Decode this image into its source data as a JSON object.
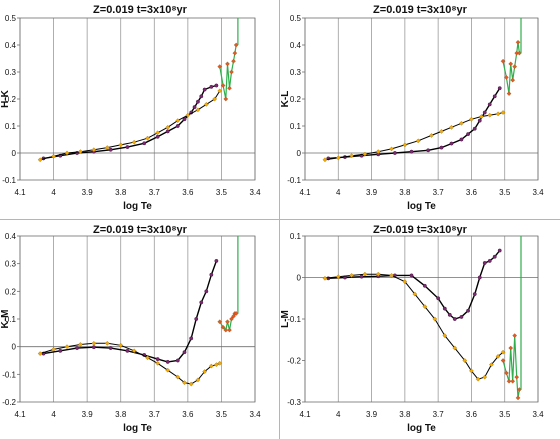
{
  "colors": {
    "dwarf_line": "#000000",
    "dwarf_points": "#7b2a6f",
    "giant_line": "#000000",
    "giant_points": "#f2a900",
    "agb_line": "#2fae4b",
    "agb_points": "#e05a28",
    "gridline": "#9a9a9a"
  },
  "chart_data": [
    {
      "type": "scatter",
      "title": "Z=0.019   t=3x10⁸yr",
      "xlabel": "log Te",
      "ylabel": "H-K",
      "xlim": [
        4.1,
        3.4
      ],
      "x_reversed": true,
      "xticks": [
        "4.1",
        "4",
        "3.9",
        "3.8",
        "3.7",
        "3.6",
        "3.5",
        "3.4"
      ],
      "ylim": [
        -0.1,
        0.5
      ],
      "yticks": [
        "-0.1",
        "0",
        "0.1",
        "0.2",
        "0.3",
        "0.4",
        "0.5"
      ],
      "grid": "vertical gridlines",
      "series": [
        {
          "role": "dwarf",
          "marker": "circle",
          "x": [
            4.03,
            3.98,
            3.93,
            3.88,
            3.83,
            3.78,
            3.73,
            3.69,
            3.66,
            3.63,
            3.61,
            3.59,
            3.58,
            3.57,
            3.56,
            3.55,
            3.53,
            3.515
          ],
          "y": [
            -0.02,
            -0.01,
            0.0,
            0.005,
            0.012,
            0.022,
            0.036,
            0.06,
            0.08,
            0.1,
            0.125,
            0.15,
            0.17,
            0.19,
            0.21,
            0.235,
            0.245,
            0.25
          ]
        },
        {
          "role": "giant",
          "marker": "diamond",
          "x": [
            4.04,
            4.0,
            3.96,
            3.92,
            3.88,
            3.84,
            3.8,
            3.76,
            3.72,
            3.69,
            3.66,
            3.63,
            3.6,
            3.57,
            3.545,
            3.52,
            3.505
          ],
          "y": [
            -0.025,
            -0.012,
            0.0,
            0.005,
            0.012,
            0.02,
            0.03,
            0.04,
            0.055,
            0.075,
            0.095,
            0.12,
            0.14,
            0.16,
            0.18,
            0.2,
            0.23
          ]
        },
        {
          "role": "agb",
          "marker": "diamond",
          "x": [
            3.505,
            3.495,
            3.487,
            3.482,
            3.476,
            3.47,
            3.464,
            3.46,
            3.456
          ],
          "y": [
            0.32,
            0.25,
            0.2,
            0.33,
            0.24,
            0.3,
            0.34,
            0.37,
            0.4
          ]
        },
        {
          "role": "agb-vertical",
          "marker": "none",
          "x": [
            3.451,
            3.451
          ],
          "y": [
            0.4,
            0.5
          ]
        }
      ]
    },
    {
      "type": "scatter",
      "title": "Z=0.019   t=3x10⁸yr",
      "xlabel": "log Te",
      "ylabel": "K-L",
      "xlim": [
        4.1,
        3.4
      ],
      "x_reversed": true,
      "xticks": [
        "4.1",
        "4",
        "3.9",
        "3.8",
        "3.7",
        "3.6",
        "3.5",
        "3.4"
      ],
      "ylim": [
        -0.1,
        0.5
      ],
      "yticks": [
        "-0.1",
        "0",
        "0.1",
        "0.2",
        "0.3",
        "0.4",
        "0.5"
      ],
      "grid": "vertical gridlines",
      "series": [
        {
          "role": "dwarf",
          "marker": "circle",
          "x": [
            4.03,
            3.98,
            3.93,
            3.88,
            3.83,
            3.78,
            3.73,
            3.69,
            3.66,
            3.63,
            3.61,
            3.59,
            3.575,
            3.56,
            3.545,
            3.53,
            3.515
          ],
          "y": [
            -0.02,
            -0.015,
            -0.01,
            -0.005,
            0.0,
            0.005,
            0.01,
            0.02,
            0.035,
            0.05,
            0.07,
            0.09,
            0.12,
            0.15,
            0.18,
            0.21,
            0.24
          ]
        },
        {
          "role": "giant",
          "marker": "diamond",
          "x": [
            4.04,
            4.0,
            3.96,
            3.92,
            3.88,
            3.84,
            3.8,
            3.76,
            3.72,
            3.69,
            3.66,
            3.63,
            3.6,
            3.57,
            3.545,
            3.52,
            3.505
          ],
          "y": [
            -0.025,
            -0.018,
            -0.01,
            -0.004,
            0.005,
            0.015,
            0.03,
            0.045,
            0.065,
            0.08,
            0.095,
            0.11,
            0.125,
            0.135,
            0.14,
            0.145,
            0.15
          ]
        },
        {
          "role": "agb",
          "marker": "diamond",
          "x": [
            3.505,
            3.495,
            3.487,
            3.482,
            3.476,
            3.47,
            3.464,
            3.46,
            3.456
          ],
          "y": [
            0.34,
            0.28,
            0.22,
            0.33,
            0.27,
            0.32,
            0.37,
            0.41,
            0.37
          ]
        },
        {
          "role": "agb-vertical",
          "marker": "none",
          "x": [
            3.451,
            3.451
          ],
          "y": [
            0.37,
            0.5
          ]
        }
      ]
    },
    {
      "type": "scatter",
      "title": "Z=0.019   t=3x10⁸yr",
      "xlabel": "log Te",
      "ylabel": "K-M",
      "xlim": [
        4.1,
        3.4
      ],
      "x_reversed": true,
      "xticks": [
        "4.1",
        "4",
        "3.9",
        "3.8",
        "3.7",
        "3.6",
        "3.5",
        "3.4"
      ],
      "ylim": [
        -0.2,
        0.4
      ],
      "yticks": [
        "-0.2",
        "-0.1",
        "0",
        "0.1",
        "0.2",
        "0.3",
        "0.4"
      ],
      "grid": "vertical gridlines",
      "series": [
        {
          "role": "dwarf",
          "marker": "circle",
          "x": [
            4.03,
            3.98,
            3.93,
            3.88,
            3.83,
            3.78,
            3.73,
            3.69,
            3.66,
            3.63,
            3.61,
            3.59,
            3.575,
            3.56,
            3.545,
            3.53,
            3.515
          ],
          "y": [
            -0.025,
            -0.015,
            -0.005,
            -0.002,
            -0.005,
            -0.015,
            -0.03,
            -0.045,
            -0.055,
            -0.05,
            -0.02,
            0.03,
            0.1,
            0.16,
            0.2,
            0.26,
            0.31
          ]
        },
        {
          "role": "giant",
          "marker": "diamond",
          "x": [
            4.04,
            4.0,
            3.96,
            3.92,
            3.88,
            3.84,
            3.8,
            3.76,
            3.72,
            3.69,
            3.66,
            3.63,
            3.61,
            3.59,
            3.57,
            3.55,
            3.53,
            3.515,
            3.505
          ],
          "y": [
            -0.025,
            -0.01,
            0.0,
            0.008,
            0.012,
            0.012,
            0.005,
            -0.015,
            -0.04,
            -0.06,
            -0.085,
            -0.11,
            -0.13,
            -0.135,
            -0.12,
            -0.09,
            -0.07,
            -0.065,
            -0.06
          ]
        },
        {
          "role": "agb",
          "marker": "diamond",
          "x": [
            3.505,
            3.495,
            3.487,
            3.482,
            3.476,
            3.47,
            3.464,
            3.46,
            3.456
          ],
          "y": [
            0.09,
            0.07,
            0.06,
            0.09,
            0.06,
            0.1,
            0.11,
            0.12,
            0.12
          ]
        },
        {
          "role": "agb-vertical",
          "marker": "none",
          "x": [
            3.451,
            3.451
          ],
          "y": [
            0.12,
            0.4
          ]
        }
      ]
    },
    {
      "type": "scatter",
      "title": "Z=0.019   t=3x10⁸yr",
      "xlabel": "log Te",
      "ylabel": "L-M",
      "xlim": [
        4.1,
        3.4
      ],
      "x_reversed": true,
      "xticks": [
        "4.1",
        "4",
        "3.9",
        "3.8",
        "3.7",
        "3.6",
        "3.5",
        "3.4"
      ],
      "ylim": [
        -0.3,
        0.1
      ],
      "yticks": [
        "-0.3",
        "-0.2",
        "-0.1",
        "0",
        "0.1"
      ],
      "grid": "vertical gridlines",
      "series": [
        {
          "role": "dwarf",
          "marker": "circle",
          "x": [
            4.03,
            3.98,
            3.93,
            3.88,
            3.83,
            3.78,
            3.74,
            3.7,
            3.68,
            3.665,
            3.65,
            3.63,
            3.61,
            3.59,
            3.575,
            3.56,
            3.545,
            3.53,
            3.515
          ],
          "y": [
            -0.002,
            0.0,
            0.002,
            0.003,
            0.005,
            0.005,
            -0.02,
            -0.05,
            -0.075,
            -0.09,
            -0.1,
            -0.095,
            -0.08,
            -0.04,
            0.0,
            0.035,
            0.04,
            0.05,
            0.065
          ]
        },
        {
          "role": "giant",
          "marker": "diamond",
          "x": [
            4.04,
            4.0,
            3.96,
            3.92,
            3.88,
            3.84,
            3.8,
            3.77,
            3.74,
            3.71,
            3.68,
            3.65,
            3.62,
            3.6,
            3.58,
            3.56,
            3.54,
            3.52,
            3.505
          ],
          "y": [
            -0.002,
            0.002,
            0.005,
            0.008,
            0.008,
            0.005,
            -0.01,
            -0.04,
            -0.07,
            -0.1,
            -0.14,
            -0.17,
            -0.2,
            -0.225,
            -0.245,
            -0.24,
            -0.21,
            -0.19,
            -0.18
          ]
        },
        {
          "role": "agb",
          "marker": "diamond",
          "x": [
            3.505,
            3.495,
            3.487,
            3.482,
            3.476,
            3.47,
            3.464,
            3.46,
            3.456
          ],
          "y": [
            -0.2,
            -0.23,
            -0.25,
            -0.17,
            -0.25,
            -0.14,
            -0.24,
            -0.29,
            -0.27
          ]
        },
        {
          "role": "agb-vertical",
          "marker": "none",
          "x": [
            3.451,
            3.451
          ],
          "y": [
            -0.27,
            0.1
          ]
        }
      ]
    }
  ]
}
